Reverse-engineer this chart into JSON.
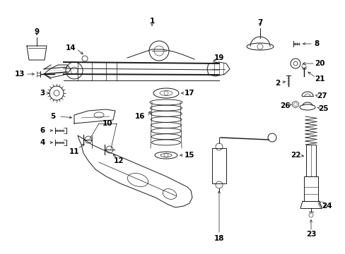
{
  "bg_color": "#ffffff",
  "line_color": "#1a1a1a",
  "text_color": "#000000",
  "fig_width": 4.89,
  "fig_height": 3.6,
  "dpi": 100,
  "label_fs": 7.5,
  "arrow_lw": 0.5
}
